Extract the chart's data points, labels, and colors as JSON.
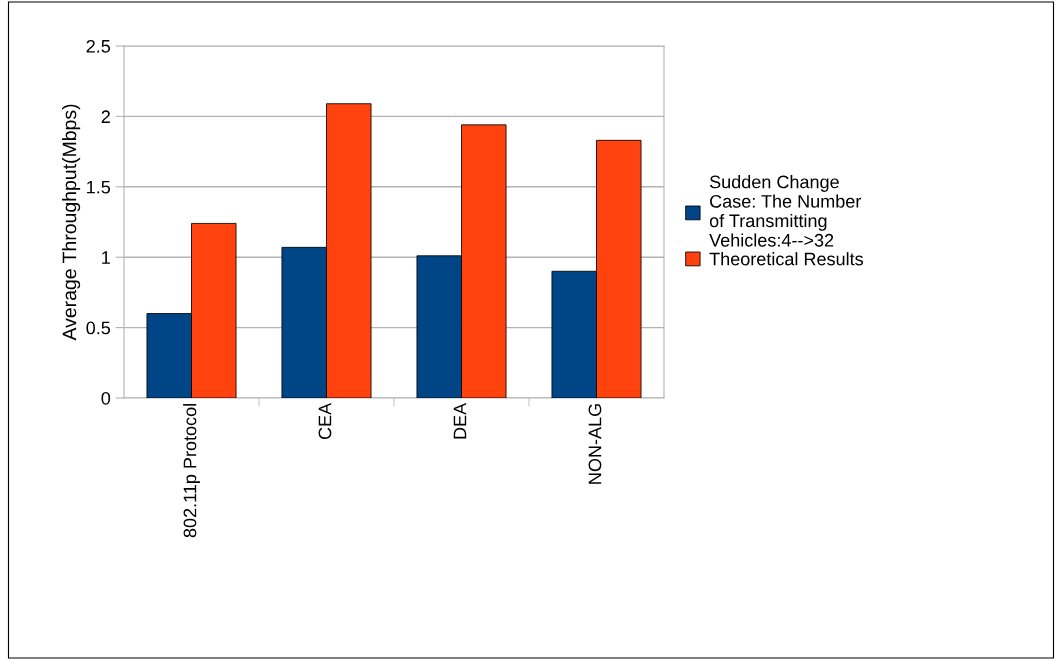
{
  "chart_data": {
    "type": "bar",
    "ylabel": "Average Throughput(Mbps)",
    "categories": [
      "802.11p Protocol",
      "CEA",
      "DEA",
      "NON-ALG"
    ],
    "series": [
      {
        "name": "Sudden Change\nCase: The Number\nof Transmitting\nVehicles:4-->32",
        "color": "#004586",
        "values": [
          0.6,
          1.07,
          1.01,
          0.9
        ]
      },
      {
        "name": "Theoretical Results",
        "color": "#ff420e",
        "values": [
          1.24,
          2.09,
          1.94,
          1.83
        ]
      }
    ],
    "ylim": [
      0,
      2.5
    ],
    "yticks": [
      0,
      0.5,
      1,
      1.5,
      2,
      2.5
    ],
    "grid": "y",
    "legend": "right"
  }
}
